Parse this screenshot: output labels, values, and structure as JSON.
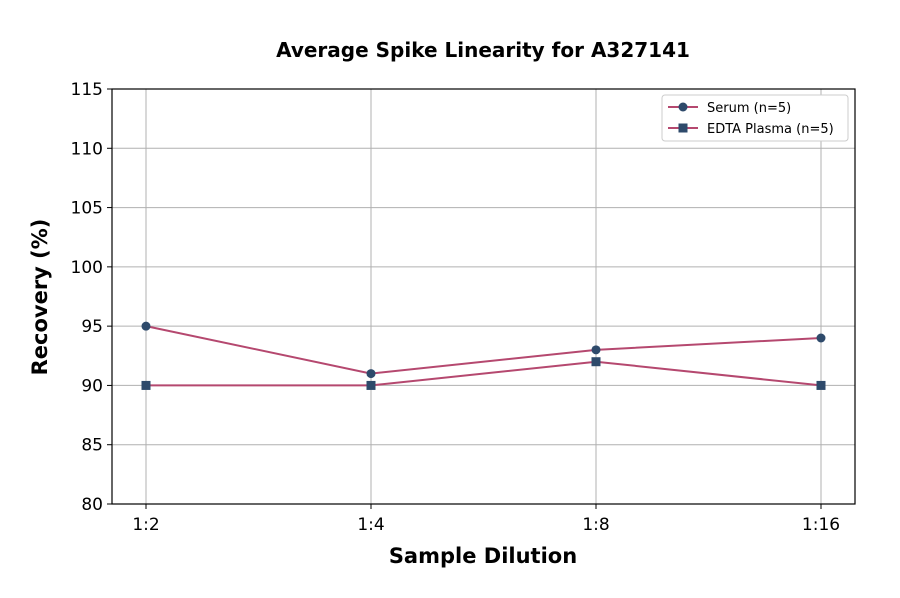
{
  "chart_data": {
    "type": "line",
    "title": "Average Spike Linearity for A327141",
    "xlabel": "Sample Dilution",
    "ylabel": "Recovery (%)",
    "categories": [
      "1:2",
      "1:4",
      "1:8",
      "1:16"
    ],
    "ylim": [
      80,
      115
    ],
    "yticks": [
      80,
      85,
      90,
      95,
      100,
      105,
      110,
      115
    ],
    "grid": true,
    "legend_position": "top-right",
    "series": [
      {
        "name": "Serum (n=5)",
        "marker": "circle",
        "values": [
          95,
          91,
          93,
          94
        ]
      },
      {
        "name": "EDTA Plasma (n=5)",
        "marker": "square",
        "values": [
          90,
          90,
          92,
          90
        ]
      }
    ],
    "colors": {
      "line": "#b5486f",
      "marker": "#2e4a6b",
      "grid": "#b0b0b0"
    }
  }
}
